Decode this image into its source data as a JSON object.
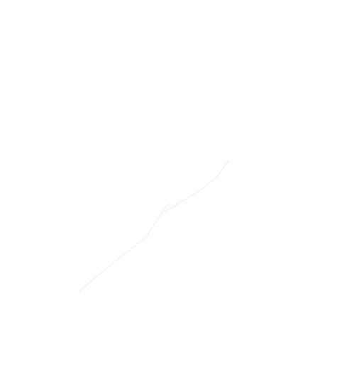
{
  "background_color": "#ffffff",
  "mark_color": "#f2f2f2"
}
